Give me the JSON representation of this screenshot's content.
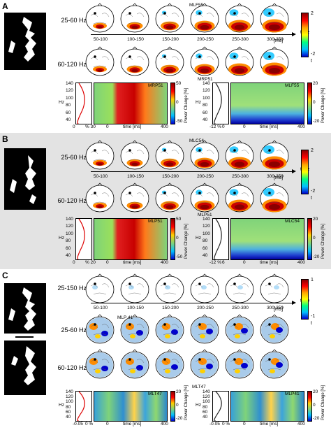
{
  "panels": [
    {
      "id": "A",
      "rows": [
        "25-60 Hz",
        "60-120 Hz"
      ],
      "sensors": [
        "MLF55",
        "MRP51"
      ],
      "windows": [
        "50-100",
        "100-150",
        "150-200",
        "200-250",
        "250-300",
        "300-350"
      ],
      "axis_word": "time",
      "axis_unit": "[ms]",
      "colorbar": {
        "max": "2",
        "min": "-2",
        "label": "t"
      },
      "spectra": [
        {
          "sensor": "MRP51",
          "profile_ticks": [
            "0",
            "% 30"
          ],
          "time_ticks": [
            "0",
            "time [ms]",
            "400"
          ],
          "power_ticks": [
            "50",
            "0",
            "-50"
          ],
          "power_label": "Power Change [%]"
        },
        {
          "sensor": "MLF55",
          "profile_ticks": [
            "-12 %",
            "0"
          ],
          "time_ticks": [
            "0",
            "time [ms]",
            "400"
          ],
          "power_ticks": [
            "20",
            "0",
            "-20"
          ],
          "power_label": "Power Change [%]"
        }
      ],
      "hz_ticks": [
        "140",
        "120",
        "100",
        "80",
        "60",
        "40"
      ],
      "hz_label": "Hz"
    },
    {
      "id": "B",
      "rows": [
        "25-60 Hz",
        "60-120 Hz"
      ],
      "sensors": [
        "MLC54",
        "MLP51"
      ],
      "windows": [
        "50-100",
        "100-150",
        "150-200",
        "200-250",
        "250-300",
        "300-350"
      ],
      "axis_word": "time",
      "axis_unit": "[ms]",
      "colorbar": {
        "max": "2",
        "min": "-2",
        "label": "t"
      },
      "spectra": [
        {
          "sensor": "MLP51",
          "profile_ticks": [
            "0",
            "% 20"
          ],
          "time_ticks": [
            "0",
            "time [ms]",
            "400"
          ],
          "power_ticks": [
            "50",
            "0",
            "-50"
          ],
          "power_label": "Power Change [%]"
        },
        {
          "sensor": "MLC54",
          "profile_ticks": [
            "-12 %",
            "6"
          ],
          "time_ticks": [
            "0",
            "time [ms]",
            "400"
          ],
          "power_ticks": [
            "20",
            "0",
            "-20"
          ],
          "power_label": "Power Change [%]"
        }
      ],
      "hz_ticks": [
        "140",
        "120",
        "100",
        "80",
        "60",
        "40"
      ],
      "hz_label": "Hz"
    },
    {
      "id": "C",
      "rows": [
        "25-150 Hz",
        "25-60 Hz",
        "60-120 Hz"
      ],
      "sensors": [
        "MLP 41",
        "MLT47"
      ],
      "windows": [
        "50-100",
        "100-150",
        "150-200",
        "200-250",
        "250-300",
        "300-350"
      ],
      "axis_word": "time",
      "axis_unit": "[ms]",
      "colorbar": {
        "max": "1",
        "min": "-1",
        "label": "t"
      },
      "spectra": [
        {
          "sensor": "MLT47",
          "profile_ticks": [
            "-0.05",
            "0 %"
          ],
          "time_ticks": [
            "0",
            "time [ms]",
            "400"
          ],
          "power_ticks": [
            "20",
            "0",
            "-20"
          ],
          "power_label": "Power Change [%]"
        },
        {
          "sensor": "MLP41",
          "profile_ticks": [
            "-0.05",
            "0 %"
          ],
          "time_ticks": [
            "0",
            "time [ms]",
            "400"
          ],
          "power_ticks": [
            "20",
            "0",
            "-20"
          ],
          "power_label": "Power Change [%]"
        }
      ],
      "hz_ticks": [
        "140",
        "120",
        "100",
        "80",
        "60",
        "40"
      ],
      "hz_label": "Hz"
    }
  ]
}
